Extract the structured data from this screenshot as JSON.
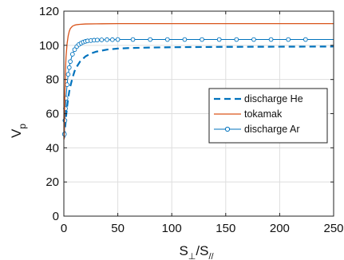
{
  "chart_data": {
    "type": "line",
    "title": "",
    "xlabel": "S⊥/S//",
    "ylabel": "V_p",
    "xlim": [
      0,
      250
    ],
    "ylim": [
      0,
      120
    ],
    "xticks": [
      0,
      50,
      100,
      150,
      200,
      250
    ],
    "yticks": [
      0,
      20,
      40,
      60,
      80,
      100,
      120
    ],
    "grid": true,
    "legend_position": "right-middle",
    "series": [
      {
        "name": "discharge He",
        "style": "dashed",
        "color": "#0072BD",
        "x": [
          0.5,
          1,
          2,
          3,
          4,
          5,
          6,
          8,
          10,
          12,
          15,
          20,
          25,
          30,
          40,
          50,
          60,
          80,
          100,
          150,
          200,
          250
        ],
        "y": [
          46,
          50,
          58,
          64,
          69,
          73,
          76,
          81,
          85,
          87.5,
          90.5,
          93.5,
          95.2,
          96.3,
          97.5,
          98.1,
          98.4,
          98.7,
          98.9,
          99.1,
          99.2,
          99.3
        ]
      },
      {
        "name": "tokamak",
        "style": "solid",
        "color": "#D95319",
        "x": [
          0.3,
          0.7,
          1,
          1.5,
          2,
          3,
          4,
          5,
          6,
          8,
          10,
          12,
          15,
          20,
          30,
          50,
          100,
          150,
          200,
          250
        ],
        "y": [
          45,
          62,
          72,
          85,
          93,
          101,
          105.5,
          108.2,
          109.8,
          111.2,
          111.8,
          112.1,
          112.3,
          112.5,
          112.6,
          112.7,
          112.7,
          112.7,
          112.7,
          112.7
        ]
      },
      {
        "name": "discharge Ar",
        "style": "solid-marker",
        "marker": "circle",
        "color": "#0072BD",
        "x": [
          0.5,
          1,
          1.5,
          2,
          3,
          4,
          5,
          6,
          8,
          10,
          12,
          14,
          16,
          18,
          20,
          22,
          25,
          28,
          31,
          35,
          40,
          45,
          50,
          60,
          70,
          80,
          96,
          112,
          128,
          144,
          160,
          176,
          192,
          208,
          224,
          250
        ],
        "y": [
          48,
          56,
          63,
          69,
          77,
          83,
          87,
          90.5,
          94.8,
          97.5,
          99.3,
          100.5,
          101.3,
          101.9,
          102.3,
          102.6,
          102.8,
          103,
          103.1,
          103.2,
          103.3,
          103.3,
          103.4,
          103.4,
          103.4,
          103.4,
          103.4,
          103.4,
          103.4,
          103.4,
          103.4,
          103.4,
          103.4,
          103.4,
          103.4,
          103.4
        ],
        "markers_x": [
          0.5,
          1,
          1.5,
          2,
          3,
          4,
          5,
          6,
          8,
          10,
          12,
          14,
          16,
          18,
          20,
          22,
          25,
          28,
          31,
          35,
          40,
          45,
          50,
          64,
          80,
          96,
          112,
          128,
          144,
          160,
          176,
          192,
          208,
          224
        ]
      }
    ]
  }
}
